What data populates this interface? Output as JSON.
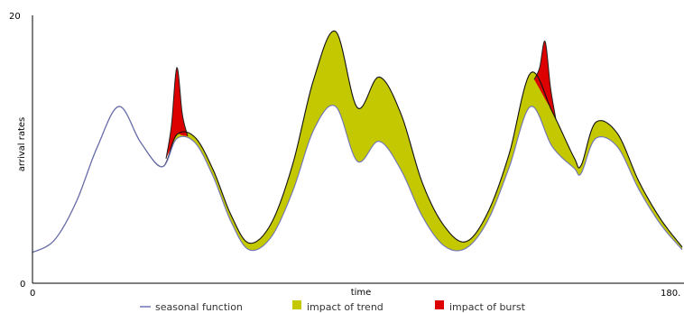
{
  "chart_data": {
    "type": "area",
    "title": "",
    "xlabel": "time",
    "ylabel": "arrival rates",
    "xlim": [
      0,
      180
    ],
    "ylim": [
      0,
      20
    ],
    "x_tick_labels": [
      "0",
      "180."
    ],
    "y_tick_labels": [
      "0",
      "20"
    ],
    "grid": false,
    "legend_position": "bottom",
    "x": [
      0,
      6,
      12,
      18,
      24,
      30,
      36,
      40,
      45,
      50,
      55,
      60,
      66,
      72,
      78,
      84,
      90,
      96,
      102,
      108,
      114,
      120,
      126,
      132,
      138,
      144,
      150,
      152,
      156,
      162,
      168,
      174,
      180
    ],
    "series": [
      {
        "name": "seasonal function",
        "color": "#6f74b8",
        "values": [
          2.3,
          3.2,
          6.0,
          10.2,
          13.2,
          10.5,
          8.7,
          10.8,
          10.5,
          8.0,
          4.6,
          2.5,
          3.4,
          6.8,
          11.5,
          13.2,
          9.1,
          10.6,
          8.5,
          5.0,
          2.8,
          2.6,
          4.6,
          8.6,
          13.2,
          10.2,
          8.6,
          8.2,
          10.8,
          10.2,
          7.0,
          4.4,
          2.5
        ]
      },
      {
        "name": "impact of trend",
        "color": "#c3c800",
        "values": [
          0,
          0,
          0,
          0,
          0,
          0,
          0,
          0.3,
          0.4,
          0.5,
          0.5,
          0.5,
          1.0,
          2.0,
          3.8,
          5.6,
          4.0,
          4.8,
          4.2,
          2.5,
          1.5,
          0.5,
          0.6,
          1.0,
          2.5,
          2.6,
          0.8,
          0.6,
          1.2,
          1.0,
          0.6,
          0.4,
          0.2
        ]
      },
      {
        "name": "impact of burst",
        "color": "#dd0000",
        "values": [
          0,
          0,
          0,
          0,
          0,
          0,
          0,
          0,
          0,
          0,
          0,
          0,
          0,
          0,
          0,
          0,
          0,
          0,
          0,
          0,
          0,
          0,
          0,
          0,
          0,
          0,
          0,
          0,
          0,
          0,
          0,
          0,
          0
        ]
      }
    ],
    "burst_events": [
      {
        "x": [
          37,
          38.5,
          40,
          41.5,
          43
        ],
        "values": [
          0,
          1.6,
          5.0,
          1.6,
          0
        ]
      },
      {
        "x": [
          139,
          140.5,
          142,
          143.5,
          145
        ],
        "values": [
          0,
          1.6,
          4.3,
          1.6,
          0
        ]
      }
    ]
  }
}
